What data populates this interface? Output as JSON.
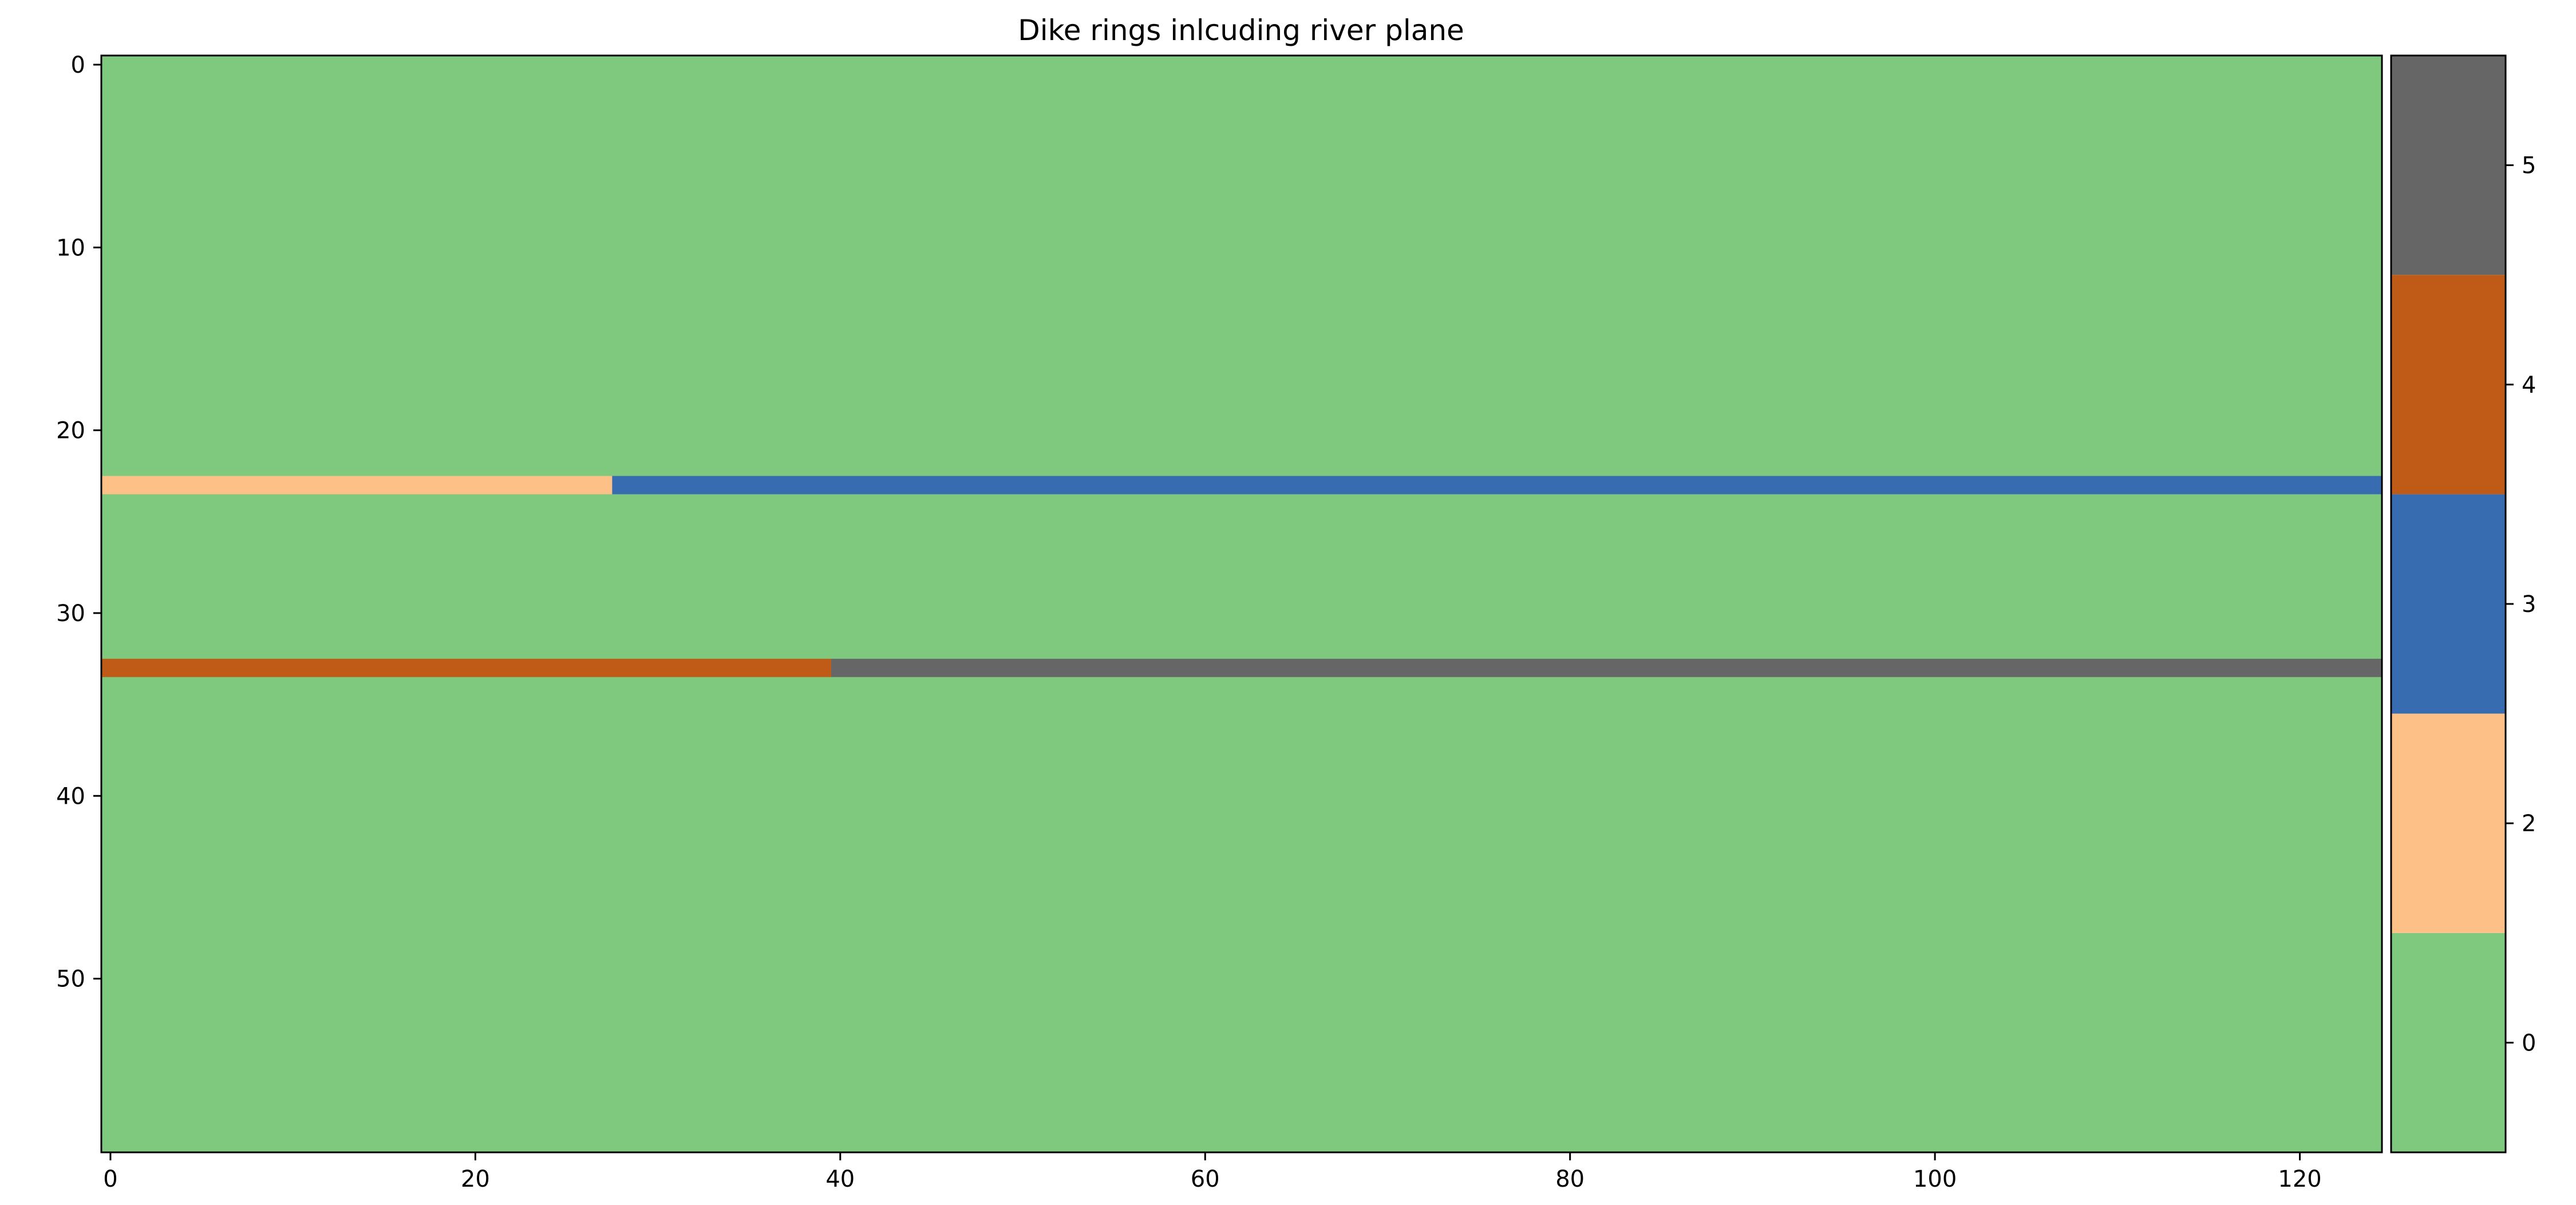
{
  "chart_data": {
    "type": "heatmap",
    "title": "Dike rings inlcuding river plane",
    "xlabel": "",
    "ylabel": "",
    "x_range": [
      -0.5,
      124.5
    ],
    "y_range": [
      -0.5,
      59.5
    ],
    "y_inverted": true,
    "x_ticks": [
      0,
      20,
      40,
      60,
      80,
      100,
      120
    ],
    "y_ticks": [
      0,
      10,
      20,
      30,
      40,
      50
    ],
    "grid": false,
    "background_value": 0,
    "regions": [
      {
        "row": 23,
        "col_start": 0,
        "col_end": 27,
        "value": 2
      },
      {
        "row": 23,
        "col_start": 28,
        "col_end": 124,
        "value": 3
      },
      {
        "row": 33,
        "col_start": 0,
        "col_end": 39,
        "value": 4
      },
      {
        "row": 33,
        "col_start": 40,
        "col_end": 124,
        "value": 5
      }
    ],
    "colorbar": {
      "placement": "right",
      "ticks": [
        0,
        2,
        3,
        4,
        5
      ],
      "levels": [
        {
          "value": 0,
          "color": "#7fc97f"
        },
        {
          "value": 2,
          "color": "#fdc086"
        },
        {
          "value": 3,
          "color": "#386cb0"
        },
        {
          "value": 4,
          "color": "#bf5b17"
        },
        {
          "value": 5,
          "color": "#666666"
        }
      ]
    }
  }
}
